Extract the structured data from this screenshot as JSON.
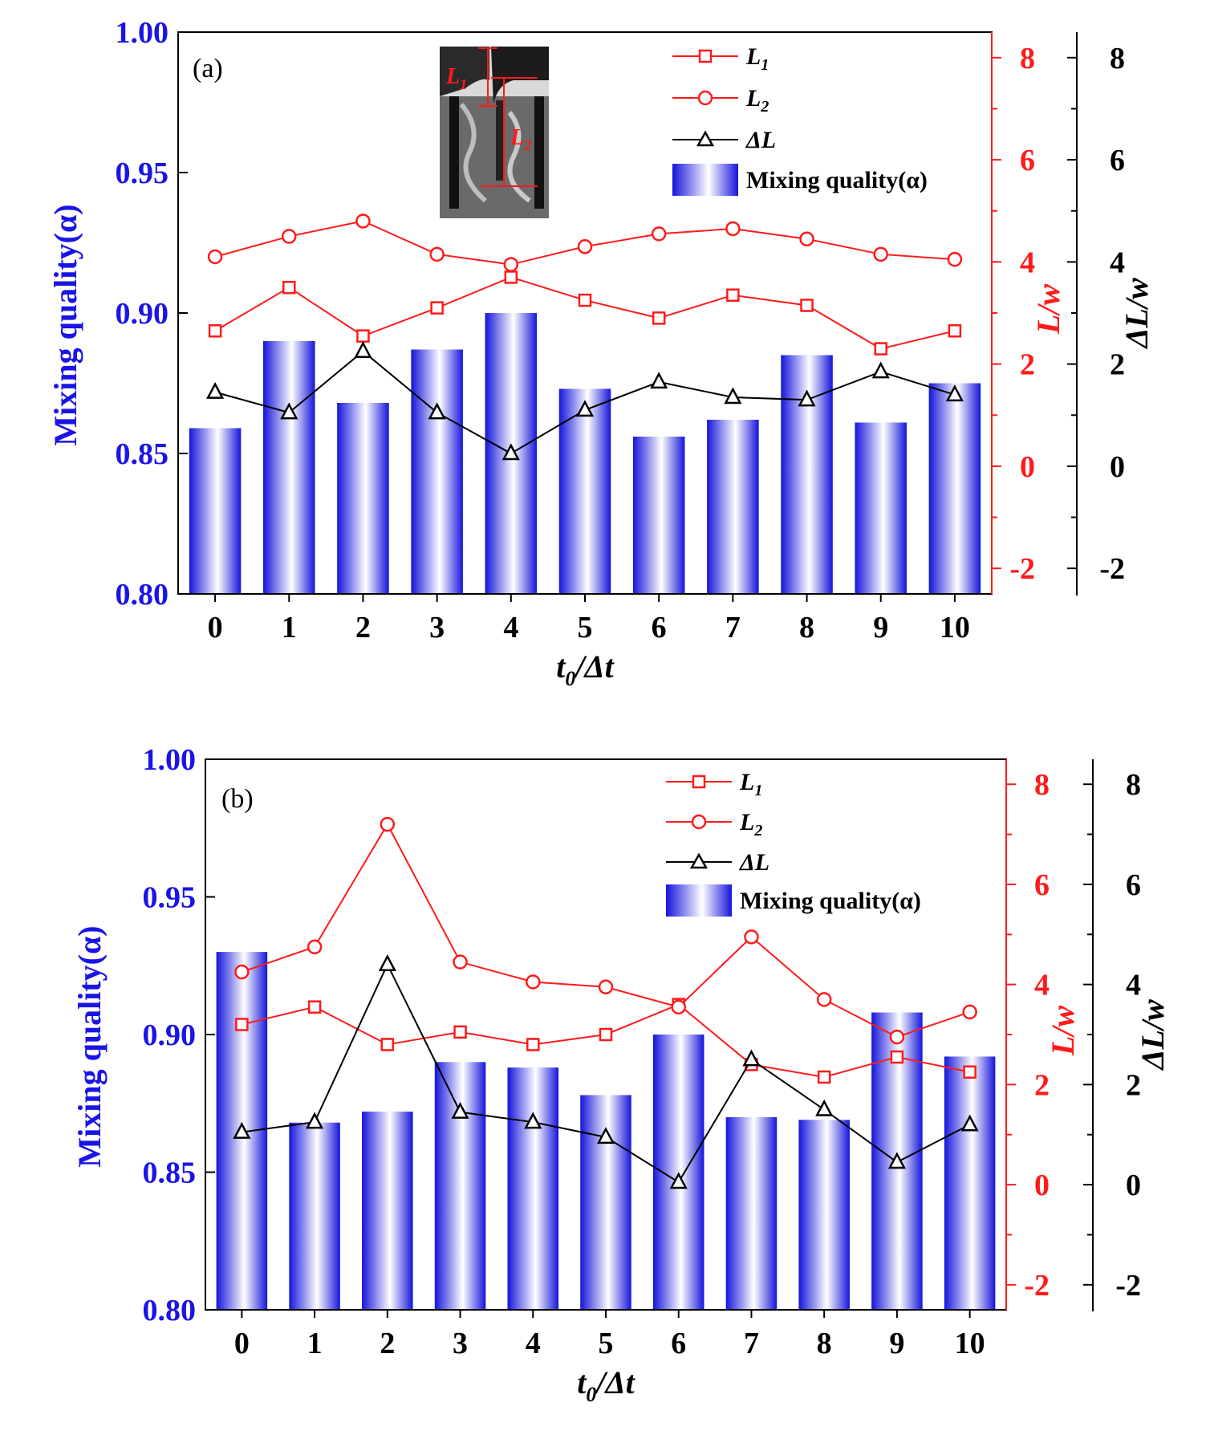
{
  "colors": {
    "bar_dark": "#1414dc",
    "bar_light": "#ffffff",
    "l1": "#ff1a1a",
    "l2": "#ff1a1a",
    "dl": "#000000",
    "left_axis": "#1a14e6",
    "mid_axis": "#ff1a1a",
    "right_axis": "#000000"
  },
  "chart_data": [
    {
      "type": "bar",
      "panel_label": "(a)",
      "categories": [
        "0",
        "1",
        "2",
        "3",
        "4",
        "5",
        "6",
        "7",
        "8",
        "9",
        "10"
      ],
      "xlabel_main": "t",
      "xlabel_sub": "0",
      "xlabel_rest": "/Δt",
      "ylabel_left": "Mixing quality(α)",
      "ylabel_mid": "L/w",
      "ylabel_right": "ΔL/w",
      "ylim_left": [
        0.8,
        1.0
      ],
      "ylim_right": [
        -2.5,
        8.5
      ],
      "yticks_left": [
        "0.80",
        "0.85",
        "0.90",
        "0.95",
        "1.00"
      ],
      "yticks_mid": [
        "-2",
        "0",
        "2",
        "4",
        "6",
        "8"
      ],
      "yticks_right": [
        "-2",
        "0",
        "2",
        "4",
        "6",
        "8"
      ],
      "mixing_quality": [
        0.859,
        0.89,
        0.868,
        0.887,
        0.9,
        0.873,
        0.856,
        0.862,
        0.885,
        0.861,
        0.875
      ],
      "L1": [
        2.65,
        3.5,
        2.55,
        3.1,
        3.7,
        3.25,
        2.9,
        3.35,
        3.15,
        2.3,
        2.65
      ],
      "L2": [
        4.1,
        4.5,
        4.8,
        4.15,
        3.95,
        4.3,
        4.55,
        4.65,
        4.45,
        4.15,
        4.05
      ],
      "dL": [
        1.45,
        1.05,
        2.25,
        1.05,
        0.25,
        1.1,
        1.65,
        1.35,
        1.3,
        1.85,
        1.4
      ],
      "legend": {
        "l1_main": "L",
        "l1_sub": "1",
        "l2_main": "L",
        "l2_sub": "2",
        "dl": "ΔL",
        "bar": "Mixing quality(α)"
      },
      "inset": {
        "l1_main": "L",
        "l1_sub": "1",
        "l2_main": "L",
        "l2_sub": "2"
      }
    },
    {
      "type": "bar",
      "panel_label": "(b)",
      "categories": [
        "0",
        "1",
        "2",
        "3",
        "4",
        "5",
        "6",
        "7",
        "8",
        "9",
        "10"
      ],
      "xlabel_main": "t",
      "xlabel_sub": "0",
      "xlabel_rest": "/Δt",
      "ylabel_left": "Mixing quality(α)",
      "ylabel_mid": "L/w",
      "ylabel_right": "ΔL/w",
      "ylim_left": [
        0.8,
        1.0
      ],
      "ylim_right": [
        -2.5,
        8.5
      ],
      "yticks_left": [
        "0.80",
        "0.85",
        "0.90",
        "0.95",
        "1.00"
      ],
      "yticks_mid": [
        "-2",
        "0",
        "2",
        "4",
        "6",
        "8"
      ],
      "yticks_right": [
        "-2",
        "0",
        "2",
        "4",
        "6",
        "8"
      ],
      "mixing_quality": [
        0.93,
        0.868,
        0.872,
        0.89,
        0.888,
        0.878,
        0.9,
        0.87,
        0.869,
        0.908,
        0.892
      ],
      "L1": [
        3.2,
        3.55,
        2.8,
        3.05,
        2.8,
        3.0,
        3.6,
        2.4,
        2.15,
        2.55,
        2.25
      ],
      "L2": [
        4.25,
        4.75,
        7.2,
        4.45,
        4.05,
        3.95,
        3.55,
        4.95,
        3.7,
        2.95,
        3.45
      ],
      "dL": [
        1.05,
        1.25,
        4.4,
        1.45,
        1.25,
        0.95,
        0.05,
        2.5,
        1.5,
        0.45,
        1.2
      ],
      "legend": {
        "l1_main": "L",
        "l1_sub": "1",
        "l2_main": "L",
        "l2_sub": "2",
        "dl": "ΔL",
        "bar": "Mixing quality(α)"
      }
    }
  ]
}
